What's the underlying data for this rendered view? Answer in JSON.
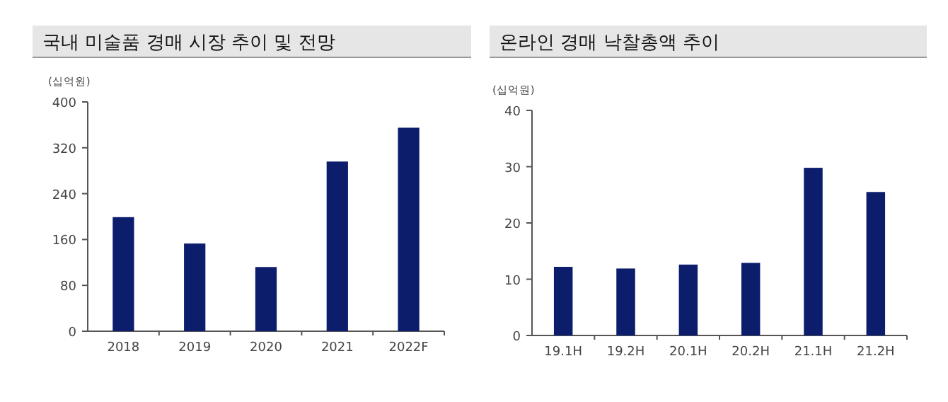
{
  "chart_data": [
    {
      "type": "bar",
      "title": "국내 미술품 경매 시장 추이 및 전망",
      "ylabel": "(십억원)",
      "categories": [
        "2018",
        "2019",
        "2020",
        "2021",
        "2022F"
      ],
      "values": [
        199,
        153,
        112,
        296,
        355
      ],
      "color": "#0c1d6c",
      "ylim": [
        0,
        400
      ],
      "yticks": [
        0,
        80,
        160,
        240,
        320,
        400
      ],
      "grid": false
    },
    {
      "type": "bar",
      "title": "온라인 경매 낙찰총액 추이",
      "ylabel": "(십억원)",
      "categories": [
        "19.1H",
        "19.2H",
        "20.1H",
        "20.2H",
        "21.1H",
        "21.2H"
      ],
      "values": [
        12.2,
        11.9,
        12.6,
        12.9,
        29.8,
        25.5
      ],
      "color": "#0c1d6c",
      "ylim": [
        0,
        40
      ],
      "yticks": [
        0,
        10,
        20,
        30,
        40
      ],
      "grid": false
    }
  ]
}
